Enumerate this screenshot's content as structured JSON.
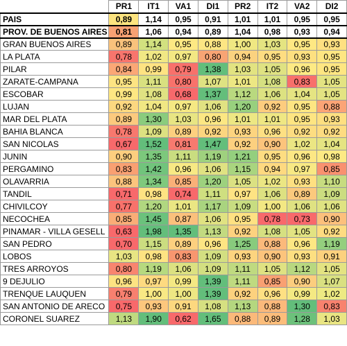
{
  "table": {
    "columns": [
      "PR1",
      "IT1",
      "VA1",
      "DI1",
      "PR2",
      "IT2",
      "VA2",
      "DI2"
    ],
    "rows": [
      {
        "label": "PAIS",
        "bold": true,
        "values": [
          "0,89",
          "1,14",
          "0,95",
          "0,91",
          "1,01",
          "1,01",
          "0,95",
          "0,95"
        ],
        "colors": [
          "#fde47f",
          "#ffffff",
          "#ffffff",
          "#ffffff",
          "#ffffff",
          "#ffffff",
          "#ffffff",
          "#ffffff"
        ]
      },
      {
        "label": "PROV. DE BUENOS AIRES",
        "bold": true,
        "values": [
          "0,81",
          "1,06",
          "0,94",
          "0,89",
          "1,04",
          "0,98",
          "0,93",
          "0,94"
        ],
        "colors": [
          "#f8a173",
          "#ffffff",
          "#ffffff",
          "#ffffff",
          "#ffffff",
          "#ffffff",
          "#ffffff",
          "#ffffff"
        ]
      },
      {
        "label": "GRAN BUENOS AIRES",
        "values": [
          "0,89",
          "1,14",
          "0,95",
          "0,88",
          "1,00",
          "1,03",
          "0,95",
          "0,93"
        ],
        "colors": [
          "#f9c27c",
          "#d2e17f",
          "#fee983",
          "#fde683",
          "#f0e882",
          "#e4e481",
          "#fee883",
          "#fee081"
        ]
      },
      {
        "label": "LA PLATA",
        "values": [
          "0,78",
          "1,02",
          "0,97",
          "0,80",
          "0,94",
          "0,95",
          "0,93",
          "0,95"
        ],
        "colors": [
          "#f8756d",
          "#f1e884",
          "#f3e883",
          "#f8a474",
          "#fbd27f",
          "#fedd81",
          "#fde080",
          "#fee682"
        ]
      },
      {
        "label": "PILAR",
        "values": [
          "0,84",
          "0,99",
          "0,79",
          "1,38",
          "1,03",
          "1,05",
          "0,96",
          "0,95"
        ],
        "colors": [
          "#fba776",
          "#fee382",
          "#f8716b",
          "#63be7b",
          "#e2e381",
          "#dfe282",
          "#fdea84",
          "#fee682"
        ]
      },
      {
        "label": "ZARATE-CAMPANA",
        "values": [
          "0,95",
          "1,11",
          "0,80",
          "1,07",
          "1,01",
          "1,08",
          "0,83",
          "1,05"
        ],
        "colors": [
          "#fde482",
          "#d9e080",
          "#f8726b",
          "#dfe282",
          "#ede783",
          "#d6e081",
          "#f8706b",
          "#e3e382"
        ]
      },
      {
        "label": "ESCOBAR",
        "values": [
          "0,99",
          "1,08",
          "0,68",
          "1,37",
          "1,12",
          "1,06",
          "1,04",
          "1,05"
        ],
        "colors": [
          "#fee782",
          "#e0e282",
          "#f8696b",
          "#64be7b",
          "#b9d97f",
          "#dce281",
          "#e5e482",
          "#e3e382"
        ]
      },
      {
        "label": "LUJAN",
        "values": [
          "0,92",
          "1,04",
          "0,97",
          "1,06",
          "1,20",
          "0,92",
          "0,95",
          "0,88"
        ],
        "colors": [
          "#fdd880",
          "#f1e783",
          "#f5e883",
          "#e1e282",
          "#98d07e",
          "#fdcc7e",
          "#fee582",
          "#fba476"
        ]
      },
      {
        "label": "MAR DEL PLATA",
        "values": [
          "0,89",
          "1,30",
          "1,03",
          "0,96",
          "1,01",
          "1,01",
          "0,95",
          "0,93"
        ],
        "colors": [
          "#fcca7e",
          "#8acc7d",
          "#e8e583",
          "#fce783",
          "#ede783",
          "#efe783",
          "#fee582",
          "#fedf81"
        ]
      },
      {
        "label": "BAHIA BLANCA",
        "values": [
          "0,78",
          "1,09",
          "0,89",
          "0,92",
          "0,93",
          "0,96",
          "0,92",
          "0,92"
        ],
        "colors": [
          "#f8786e",
          "#dde181",
          "#fdd07f",
          "#fcd57f",
          "#fdd47f",
          "#fee083",
          "#fddd81",
          "#fedc81"
        ]
      },
      {
        "label": "SAN NICOLAS",
        "values": [
          "0,67",
          "1,52",
          "0,81",
          "1,47",
          "0,92",
          "0,90",
          "1,02",
          "1,04"
        ],
        "colors": [
          "#f8696b",
          "#63be7b",
          "#f87a6f",
          "#63be7b",
          "#fcd07f",
          "#fcc47c",
          "#ebe683",
          "#e5e482"
        ]
      },
      {
        "label": "JUNIN",
        "values": [
          "0,90",
          "1,35",
          "1,11",
          "1,19",
          "1,21",
          "0,95",
          "0,96",
          "0,98"
        ],
        "colors": [
          "#fcce7f",
          "#7cc87c",
          "#c9dd80",
          "#9fd17e",
          "#94cf7e",
          "#fedd81",
          "#fde784",
          "#fdea84"
        ]
      },
      {
        "label": "PERGAMINO",
        "values": [
          "0,83",
          "1,42",
          "0,96",
          "1,06",
          "1,15",
          "0,94",
          "0,97",
          "0,85"
        ],
        "colors": [
          "#f9a072",
          "#71c47c",
          "#f8e984",
          "#e0e282",
          "#a9d57f",
          "#fed980",
          "#f8e984",
          "#f9916f"
        ]
      },
      {
        "label": "OLAVARRIA",
        "values": [
          "0,88",
          "1,34",
          "0,85",
          "1,20",
          "1,05",
          "1,02",
          "0,93",
          "1,10"
        ],
        "colors": [
          "#fbc47d",
          "#7fc97d",
          "#fab078",
          "#9dd17e",
          "#dbe182",
          "#ebe683",
          "#fee081",
          "#c7dc80"
        ]
      },
      {
        "label": "TANDIL",
        "values": [
          "0,71",
          "0,98",
          "0,74",
          "1,11",
          "0,97",
          "1,06",
          "0,89",
          "1,09"
        ],
        "colors": [
          "#f8696b",
          "#fee382",
          "#f8696b",
          "#cfdf80",
          "#fee383",
          "#dde181",
          "#fbc97d",
          "#cbdd80"
        ]
      },
      {
        "label": "CHIVILCOY",
        "values": [
          "0,77",
          "1,20",
          "1,01",
          "1,17",
          "1,09",
          "1,00",
          "1,06",
          "1,06"
        ],
        "colors": [
          "#f8726b",
          "#b1d780",
          "#eae683",
          "#a9d47f",
          "#c8dd81",
          "#f3e883",
          "#dfe282",
          "#dfe382"
        ]
      },
      {
        "label": "NECOCHEA",
        "values": [
          "0,85",
          "1,45",
          "0,87",
          "1,06",
          "0,95",
          "0,78",
          "0,73",
          "0,90"
        ],
        "colors": [
          "#faad77",
          "#6bc27c",
          "#fbc07c",
          "#e0e282",
          "#fee182",
          "#f8696b",
          "#f8696b",
          "#fcc07c"
        ]
      },
      {
        "label": "PINAMAR - VILLA GESELL",
        "values": [
          "0,63",
          "1,98",
          "1,35",
          "1,13",
          "0,92",
          "1,08",
          "1,05",
          "0,92"
        ],
        "colors": [
          "#f8696b",
          "#63be7b",
          "#63be7b",
          "#c2da80",
          "#fdd27f",
          "#d6e081",
          "#e2e382",
          "#fedc81"
        ]
      },
      {
        "label": "SAN PEDRO",
        "values": [
          "0,70",
          "1,15",
          "0,89",
          "0,96",
          "1,25",
          "0,88",
          "0,96",
          "1,19"
        ],
        "colors": [
          "#f8696b",
          "#cbdd80",
          "#fdd07f",
          "#fde583",
          "#88cb7d",
          "#fbb97b",
          "#fde783",
          "#94cf7e"
        ]
      },
      {
        "label": "LOBOS",
        "values": [
          "1,03",
          "0,98",
          "0,83",
          "1,09",
          "0,93",
          "0,90",
          "0,93",
          "0,91"
        ],
        "colors": [
          "#e8e583",
          "#fee382",
          "#f8966f",
          "#d3df81",
          "#fdd47f",
          "#fcc47c",
          "#fddf81",
          "#fcd17e"
        ]
      },
      {
        "label": "TRES ARROYOS",
        "values": [
          "0,80",
          "1,19",
          "1,06",
          "1,09",
          "1,11",
          "1,05",
          "1,12",
          "1,05"
        ],
        "colors": [
          "#f8856f",
          "#b6d97f",
          "#dce181",
          "#d3df81",
          "#bfda80",
          "#dfe282",
          "#b8d880",
          "#e3e382"
        ]
      },
      {
        "label": "9 DEJULIO",
        "values": [
          "0,96",
          "0,97",
          "0,99",
          "1,39",
          "1,11",
          "0,85",
          "0,90",
          "1,07"
        ],
        "colors": [
          "#fde382",
          "#feda80",
          "#f4e883",
          "#63be7b",
          "#bfda80",
          "#f9a072",
          "#fccd7e",
          "#d9e081"
        ]
      },
      {
        "label": "TRENQUE LAUQUEN",
        "values": [
          "0,79",
          "1,00",
          "1,00",
          "1,39",
          "0,92",
          "0,96",
          "0,99",
          "1,02"
        ],
        "colors": [
          "#f8806f",
          "#f9e984",
          "#eee783",
          "#63be7b",
          "#fcd17e",
          "#fee083",
          "#f4e983",
          "#edea83"
        ]
      },
      {
        "label": "SAN ANTONIO DE ARECO",
        "values": [
          "0,75",
          "0,93",
          "0,91",
          "1,08",
          "1,13",
          "0,88",
          "1,30",
          "0,83"
        ],
        "colors": [
          "#f8696b",
          "#fdc77d",
          "#fdd87f",
          "#d6e081",
          "#b4d77f",
          "#fbb97b",
          "#63be7b",
          "#f8826e"
        ]
      },
      {
        "label": "CORONEL SUAREZ",
        "values": [
          "1,13",
          "1,90",
          "0,62",
          "1,65",
          "0,88",
          "0,89",
          "1,28",
          "1,03"
        ],
        "colors": [
          "#bfda80",
          "#63be7b",
          "#f8696b",
          "#63be7b",
          "#fbb97a",
          "#fbbd7b",
          "#6cc17b",
          "#e9e583"
        ]
      }
    ]
  }
}
